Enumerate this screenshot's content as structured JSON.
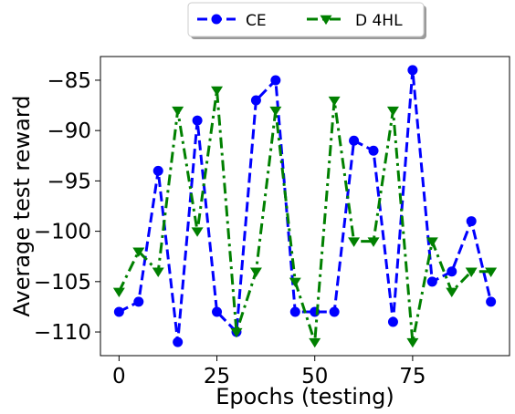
{
  "chart_data": {
    "type": "line",
    "xlabel": "Epochs (testing)",
    "ylabel": "Average test reward",
    "xlim": [
      -4.75,
      99.75
    ],
    "ylim": [
      -112.35,
      -82.65
    ],
    "xticks": [
      0,
      25,
      50,
      75
    ],
    "xtick_labels": [
      "0",
      "25",
      "50",
      "75"
    ],
    "yticks": [
      -110,
      -105,
      -100,
      -95,
      -90,
      -85
    ],
    "ytick_labels": [
      "−110",
      "−105",
      "−100",
      "−95",
      "−90",
      "−85"
    ],
    "grid": false,
    "legend_placement": "top-center (outside, above plot)",
    "x": [
      0,
      5,
      10,
      15,
      20,
      25,
      30,
      35,
      40,
      45,
      50,
      55,
      60,
      65,
      70,
      75,
      80,
      85,
      90,
      95
    ],
    "series": [
      {
        "name": "CE",
        "color": "#0000ff",
        "marker": "circle",
        "linestyle": "dashed",
        "values": [
          -108,
          -107,
          -94,
          -111,
          -89,
          -108,
          -110,
          -87,
          -85,
          -108,
          -108,
          -108,
          -91,
          -92,
          -109,
          -84,
          -105,
          -104,
          -99,
          -107
        ]
      },
      {
        "name": "D 4HL",
        "color": "#008000",
        "marker": "triangle-down",
        "linestyle": "dashdot",
        "values": [
          -106,
          -102,
          -104,
          -88,
          -100,
          -86,
          -110,
          -104,
          -88,
          -105,
          -111,
          -87,
          -101,
          -101,
          -88,
          -111,
          -101,
          -106,
          -104,
          -104
        ]
      }
    ]
  }
}
